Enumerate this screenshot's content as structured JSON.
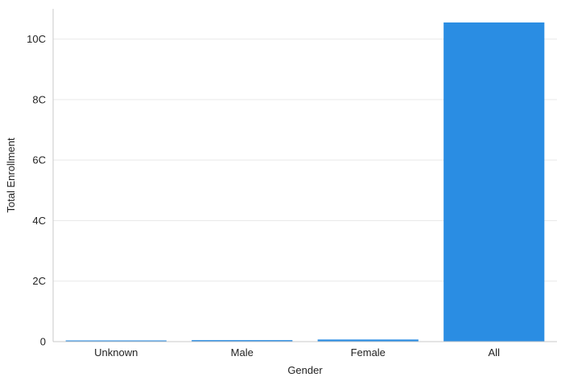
{
  "chart_data": {
    "type": "bar",
    "xlabel": "Gender",
    "ylabel": "Total Enrollment",
    "categories": [
      "Unknown",
      "Male",
      "Female",
      "All"
    ],
    "values": [
      0.4,
      0.5,
      0.7,
      105.5
    ],
    "ylim": [
      0,
      110
    ],
    "yticks": [
      0,
      20,
      40,
      60,
      80,
      100
    ],
    "ytick_labels": [
      "0",
      "2C",
      "4C",
      "6C",
      "8C",
      "10C"
    ],
    "grid": "horizontal",
    "legend": "none",
    "colors": {
      "bar": "#2a8de3",
      "grid": "#e9e9e9",
      "axis": "#c8c8c8"
    }
  }
}
